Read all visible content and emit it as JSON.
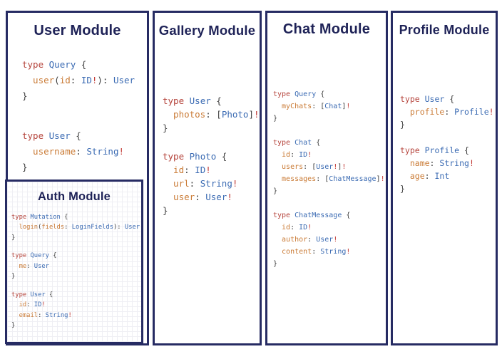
{
  "diagram": {
    "colors": {
      "border": "#262b63",
      "title": "#1e2257",
      "keyword": "#b5443c",
      "type": "#3b6bb3",
      "field": "#ca7b36",
      "punct": "#3f3f3f",
      "bang": "#c23b36"
    },
    "panels": [
      {
        "id": "user",
        "title": "User Module",
        "blocks": [
          {
            "lines": [
              [
                [
                  "k",
                  "type "
                ],
                [
                  "t",
                  "Query "
                ],
                [
                  "p",
                  "{"
                ]
              ],
              [
                [
                  "f",
                  "  user"
                ],
                [
                  "p",
                  "("
                ],
                [
                  "f",
                  "id"
                ],
                [
                  "p",
                  ": "
                ],
                [
                  "t",
                  "ID"
                ],
                [
                  "b",
                  "!"
                ],
                [
                  "p",
                  "): "
                ],
                [
                  "t",
                  "User"
                ]
              ],
              [
                [
                  "p",
                  "}"
                ]
              ]
            ]
          },
          {
            "lines": [
              [
                [
                  "k",
                  "type "
                ],
                [
                  "t",
                  "User "
                ],
                [
                  "p",
                  "{"
                ]
              ],
              [
                [
                  "f",
                  "  username"
                ],
                [
                  "p",
                  ": "
                ],
                [
                  "t",
                  "String"
                ],
                [
                  "b",
                  "!"
                ]
              ],
              [
                [
                  "p",
                  "}"
                ]
              ]
            ]
          }
        ]
      },
      {
        "id": "auth",
        "title": "Auth Module",
        "blocks": [
          {
            "lines": [
              [
                [
                  "k",
                  "type "
                ],
                [
                  "t",
                  "Mutation "
                ],
                [
                  "p",
                  "{"
                ]
              ],
              [
                [
                  "f",
                  "  login"
                ],
                [
                  "p",
                  "("
                ],
                [
                  "f",
                  "fields"
                ],
                [
                  "p",
                  ": "
                ],
                [
                  "t",
                  "LoginFields"
                ],
                [
                  "p",
                  "): "
                ],
                [
                  "t",
                  "User"
                ]
              ],
              [
                [
                  "p",
                  "}"
                ]
              ]
            ]
          },
          {
            "lines": [
              [
                [
                  "k",
                  "type "
                ],
                [
                  "t",
                  "Query "
                ],
                [
                  "p",
                  "{"
                ]
              ],
              [
                [
                  "f",
                  "  me"
                ],
                [
                  "p",
                  ": "
                ],
                [
                  "t",
                  "User"
                ]
              ],
              [
                [
                  "p",
                  "}"
                ]
              ]
            ]
          },
          {
            "lines": [
              [
                [
                  "k",
                  "type "
                ],
                [
                  "t",
                  "User "
                ],
                [
                  "p",
                  "{"
                ]
              ],
              [
                [
                  "f",
                  "  id"
                ],
                [
                  "p",
                  ": "
                ],
                [
                  "t",
                  "ID"
                ],
                [
                  "b",
                  "!"
                ]
              ],
              [
                [
                  "f",
                  "  email"
                ],
                [
                  "p",
                  ": "
                ],
                [
                  "t",
                  "String"
                ],
                [
                  "b",
                  "!"
                ]
              ],
              [
                [
                  "p",
                  "}"
                ]
              ]
            ]
          }
        ]
      },
      {
        "id": "gallery",
        "title": "Gallery Module",
        "blocks": [
          {
            "lines": [
              [
                [
                  "k",
                  "type "
                ],
                [
                  "t",
                  "User "
                ],
                [
                  "p",
                  "{"
                ]
              ],
              [
                [
                  "f",
                  "  photos"
                ],
                [
                  "p",
                  ": "
                ],
                [
                  "p",
                  "["
                ],
                [
                  "t",
                  "Photo"
                ],
                [
                  "p",
                  "]"
                ],
                [
                  "b",
                  "!"
                ]
              ],
              [
                [
                  "p",
                  "}"
                ]
              ]
            ]
          },
          {
            "lines": [
              [
                [
                  "k",
                  "type "
                ],
                [
                  "t",
                  "Photo "
                ],
                [
                  "p",
                  "{"
                ]
              ],
              [
                [
                  "f",
                  "  id"
                ],
                [
                  "p",
                  ": "
                ],
                [
                  "t",
                  "ID"
                ],
                [
                  "b",
                  "!"
                ]
              ],
              [
                [
                  "f",
                  "  url"
                ],
                [
                  "p",
                  ": "
                ],
                [
                  "t",
                  "String"
                ],
                [
                  "b",
                  "!"
                ]
              ],
              [
                [
                  "f",
                  "  user"
                ],
                [
                  "p",
                  ": "
                ],
                [
                  "t",
                  "User"
                ],
                [
                  "b",
                  "!"
                ]
              ],
              [
                [
                  "p",
                  "}"
                ]
              ]
            ]
          }
        ]
      },
      {
        "id": "chat",
        "title": "Chat Module",
        "blocks": [
          {
            "lines": [
              [
                [
                  "k",
                  "type "
                ],
                [
                  "t",
                  "Query "
                ],
                [
                  "p",
                  "{"
                ]
              ],
              [
                [
                  "f",
                  "  myChats"
                ],
                [
                  "p",
                  ": "
                ],
                [
                  "p",
                  "["
                ],
                [
                  "t",
                  "Chat"
                ],
                [
                  "p",
                  "]"
                ],
                [
                  "b",
                  "!"
                ]
              ],
              [
                [
                  "p",
                  "}"
                ]
              ]
            ]
          },
          {
            "lines": [
              [
                [
                  "k",
                  "type "
                ],
                [
                  "t",
                  "Chat "
                ],
                [
                  "p",
                  "{"
                ]
              ],
              [
                [
                  "f",
                  "  id"
                ],
                [
                  "p",
                  ": "
                ],
                [
                  "t",
                  "ID"
                ],
                [
                  "b",
                  "!"
                ]
              ],
              [
                [
                  "f",
                  "  users"
                ],
                [
                  "p",
                  ": "
                ],
                [
                  "p",
                  "["
                ],
                [
                  "t",
                  "User"
                ],
                [
                  "b",
                  "!"
                ],
                [
                  "p",
                  "]"
                ],
                [
                  "b",
                  "!"
                ]
              ],
              [
                [
                  "f",
                  "  messages"
                ],
                [
                  "p",
                  ": "
                ],
                [
                  "p",
                  "["
                ],
                [
                  "t",
                  "ChatMessage"
                ],
                [
                  "p",
                  "]"
                ],
                [
                  "b",
                  "!"
                ]
              ],
              [
                [
                  "p",
                  "}"
                ]
              ]
            ]
          },
          {
            "lines": [
              [
                [
                  "k",
                  "type "
                ],
                [
                  "t",
                  "ChatMessage "
                ],
                [
                  "p",
                  "{"
                ]
              ],
              [
                [
                  "f",
                  "  id"
                ],
                [
                  "p",
                  ": "
                ],
                [
                  "t",
                  "ID"
                ],
                [
                  "b",
                  "!"
                ]
              ],
              [
                [
                  "f",
                  "  author"
                ],
                [
                  "p",
                  ": "
                ],
                [
                  "t",
                  "User"
                ],
                [
                  "b",
                  "!"
                ]
              ],
              [
                [
                  "f",
                  "  content"
                ],
                [
                  "p",
                  ": "
                ],
                [
                  "t",
                  "String"
                ],
                [
                  "b",
                  "!"
                ]
              ],
              [
                [
                  "p",
                  "}"
                ]
              ]
            ]
          }
        ]
      },
      {
        "id": "profile",
        "title": "Profile Module",
        "blocks": [
          {
            "lines": [
              [
                [
                  "k",
                  "type "
                ],
                [
                  "t",
                  "User "
                ],
                [
                  "p",
                  "{"
                ]
              ],
              [
                [
                  "f",
                  "  profile"
                ],
                [
                  "p",
                  ": "
                ],
                [
                  "t",
                  "Profile"
                ],
                [
                  "b",
                  "!"
                ]
              ],
              [
                [
                  "p",
                  "}"
                ]
              ]
            ]
          },
          {
            "lines": [
              [
                [
                  "k",
                  "type "
                ],
                [
                  "t",
                  "Profile "
                ],
                [
                  "p",
                  "{"
                ]
              ],
              [
                [
                  "f",
                  "  name"
                ],
                [
                  "p",
                  ": "
                ],
                [
                  "t",
                  "String"
                ],
                [
                  "b",
                  "!"
                ]
              ],
              [
                [
                  "f",
                  "  age"
                ],
                [
                  "p",
                  ": "
                ],
                [
                  "t",
                  "Int"
                ]
              ],
              [
                [
                  "p",
                  "}"
                ]
              ]
            ]
          }
        ]
      }
    ]
  }
}
